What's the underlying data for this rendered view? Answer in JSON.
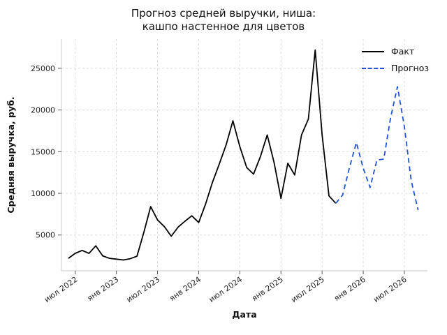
{
  "chart_data": {
    "type": "line",
    "title_lines": [
      "Прогноз средней выручки, ниша:",
      "кашпо настенное для цветов"
    ],
    "xlabel": "Дата",
    "ylabel": "Средняя выручка, руб.",
    "ylim": [
      700,
      28500
    ],
    "yticks": [
      5000,
      10000,
      15000,
      20000,
      25000
    ],
    "grid": "both, light dashed",
    "legend_position": "upper right",
    "x_start_month": "июн 2022",
    "xticks": [
      {
        "label": "июл 2022",
        "m": 1
      },
      {
        "label": "янв 2023",
        "m": 7
      },
      {
        "label": "июл 2023",
        "m": 13
      },
      {
        "label": "янв 2024",
        "m": 19
      },
      {
        "label": "июл 2024",
        "m": 25
      },
      {
        "label": "янв 2025",
        "m": 31
      },
      {
        "label": "июл 2025",
        "m": 37
      },
      {
        "label": "янв 2026",
        "m": 43
      },
      {
        "label": "июл 2026",
        "m": 49
      }
    ],
    "series": [
      {
        "name": "Факт",
        "style": "solid",
        "color": "#000000",
        "start_m": 0,
        "start_label": "июн 2022",
        "end_label": "сен 2025",
        "values": [
          2200,
          2800,
          3150,
          2800,
          3700,
          2500,
          2200,
          2100,
          2000,
          2150,
          2450,
          5300,
          8400,
          6800,
          6000,
          4850,
          5950,
          6650,
          7300,
          6500,
          8700,
          11300,
          13500,
          15800,
          18700,
          15600,
          13100,
          12300,
          14400,
          17000,
          13700,
          9400,
          13600,
          12200,
          17000,
          18900,
          27200,
          17000,
          9700,
          8800
        ]
      },
      {
        "name": "Прогноз",
        "style": "dashed",
        "color": "#2352cc",
        "start_m": 39,
        "start_label": "сен 2025",
        "end_label": "сен 2026",
        "values": [
          8800,
          9800,
          13100,
          16100,
          13000,
          10700,
          14000,
          14100,
          19100,
          22800,
          18000,
          11500,
          8000
        ]
      }
    ]
  },
  "legend": {
    "items": [
      {
        "label": "Факт"
      },
      {
        "label": "Прогноз"
      }
    ]
  }
}
